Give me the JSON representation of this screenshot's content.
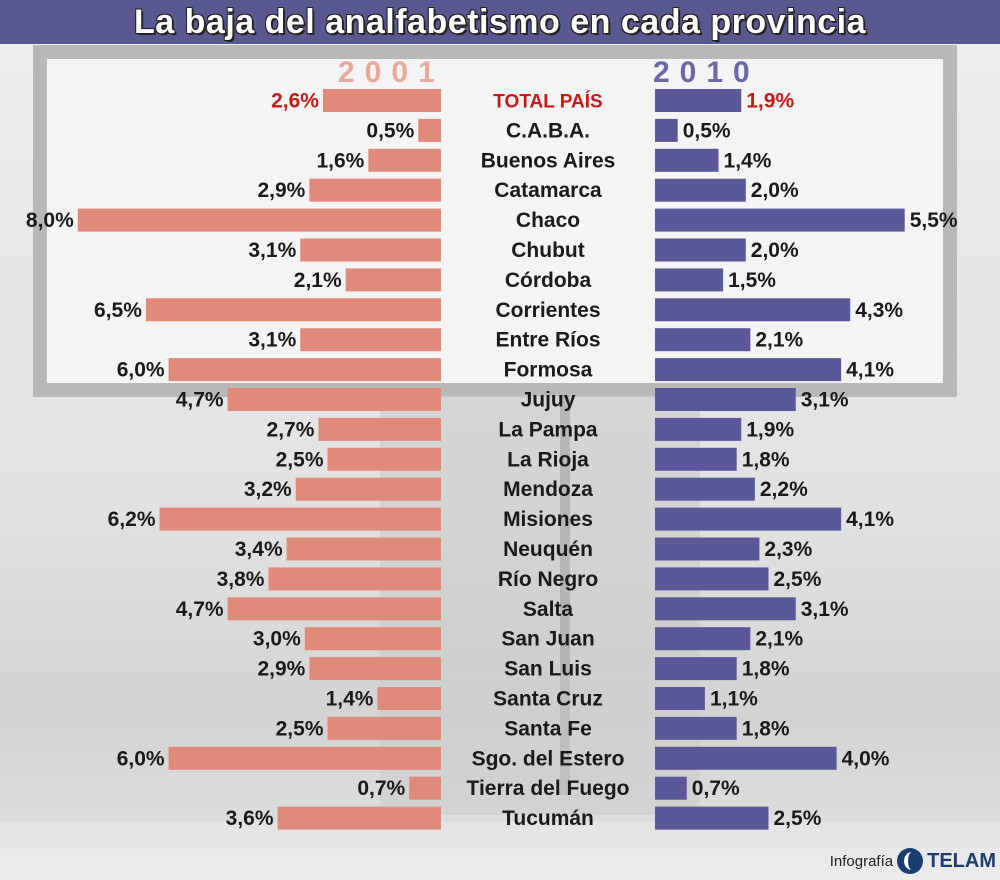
{
  "title": "La baja del analfabetismo en cada provincia",
  "credit": {
    "label": "Infografía",
    "brand": "TELAM"
  },
  "colors": {
    "left_bar": "#e08a7a",
    "right_bar": "#5a5898",
    "total_label": "#c41a1a",
    "title_bg": "#5a5890"
  },
  "chart_data": {
    "type": "bar",
    "orientation": "horizontal-butterfly",
    "categories": [
      "TOTAL PAÍS",
      "C.A.B.A.",
      "Buenos Aires",
      "Catamarca",
      "Chaco",
      "Chubut",
      "Córdoba",
      "Corrientes",
      "Entre Ríos",
      "Formosa",
      "Jujuy",
      "La Pampa",
      "La Rioja",
      "Mendoza",
      "Misiones",
      "Neuquén",
      "Río Negro",
      "Salta",
      "San Juan",
      "San Luis",
      "Santa Cruz",
      "Santa Fe",
      "Sgo. del Estero",
      "Tierra del Fuego",
      "Tucumán"
    ],
    "series": [
      {
        "name": "2001",
        "values": [
          2.6,
          0.5,
          1.6,
          2.9,
          8.0,
          3.1,
          2.1,
          6.5,
          3.1,
          6.0,
          4.7,
          2.7,
          2.5,
          3.2,
          6.2,
          3.4,
          3.8,
          4.7,
          3.0,
          2.9,
          1.4,
          2.5,
          6.0,
          0.7,
          3.6
        ],
        "labels": [
          "2,6%",
          "0,5%",
          "1,6%",
          "2,9%",
          "8,0%",
          "3,1%",
          "2,1%",
          "6,5%",
          "3,1%",
          "6,0%",
          "4,7%",
          "2,7%",
          "2,5%",
          "3,2%",
          "6,2%",
          "3,4%",
          "3,8%",
          "4,7%",
          "3,0%",
          "2,9%",
          "1,4%",
          "2,5%",
          "6,0%",
          "0,7%",
          "3,6%"
        ]
      },
      {
        "name": "2010",
        "values": [
          1.9,
          0.5,
          1.4,
          2.0,
          5.5,
          2.0,
          1.5,
          4.3,
          2.1,
          4.1,
          3.1,
          1.9,
          1.8,
          2.2,
          4.1,
          2.3,
          2.5,
          3.1,
          2.1,
          1.8,
          1.1,
          1.8,
          4.0,
          0.7,
          2.5
        ],
        "labels": [
          "1,9%",
          "0,5%",
          "1,4%",
          "2,0%",
          "5,5%",
          "2,0%",
          "1,5%",
          "4,3%",
          "2,1%",
          "4,1%",
          "3,1%",
          "1,9%",
          "1,8%",
          "2,2%",
          "4,1%",
          "2,3%",
          "2,5%",
          "3,1%",
          "2,1%",
          "1,8%",
          "1,1%",
          "1,8%",
          "4,0%",
          "0,7%",
          "2,5%"
        ]
      }
    ],
    "unit": "%"
  }
}
